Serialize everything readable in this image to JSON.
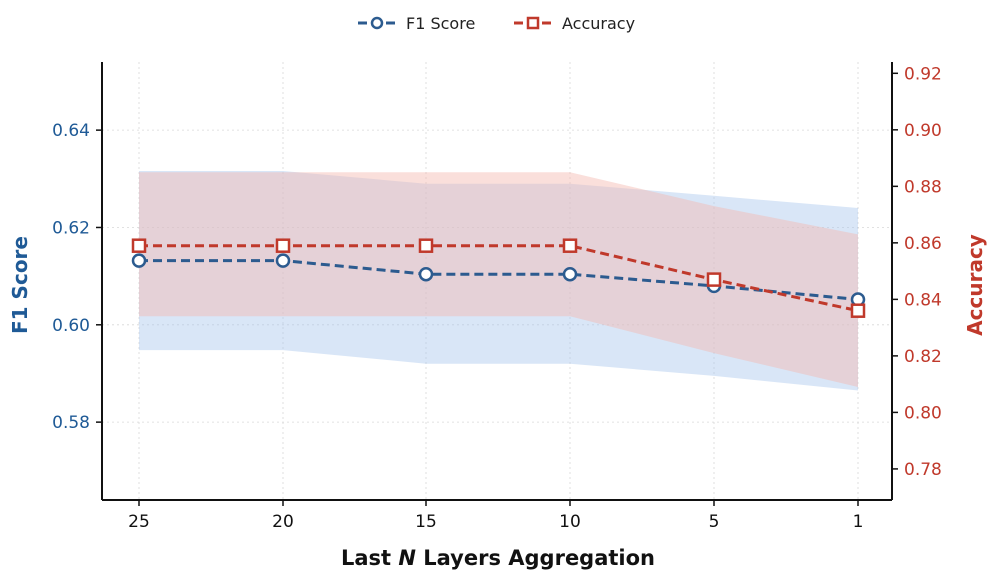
{
  "chart_data": {
    "type": "line",
    "xlabel_prefix": "Last ",
    "xlabel_var": "N",
    "xlabel_suffix": " Layers Aggregation",
    "x": [
      25,
      20,
      15,
      10,
      5,
      1
    ],
    "x_ticks": [
      "25",
      "20",
      "15",
      "10",
      "5",
      "1"
    ],
    "y_left": {
      "label": "F1 Score",
      "ylim": [
        0.564,
        0.654
      ],
      "ticks": [
        0.58,
        0.6,
        0.62,
        0.64
      ],
      "tick_labels": [
        "0.58",
        "0.60",
        "0.62",
        "0.64"
      ],
      "color": "#1f5a96"
    },
    "y_right": {
      "label": "Accuracy",
      "ylim": [
        0.769,
        0.924
      ],
      "ticks": [
        0.78,
        0.8,
        0.82,
        0.84,
        0.86,
        0.88,
        0.9,
        0.92
      ],
      "tick_labels": [
        "0.78",
        "0.80",
        "0.82",
        "0.84",
        "0.86",
        "0.88",
        "0.90",
        "0.92"
      ],
      "color": "#c0392b"
    },
    "series": [
      {
        "name": "F1 Score",
        "axis": "left",
        "color": "#2c5b8f",
        "marker": "circle",
        "values": [
          0.6132,
          0.6132,
          0.6104,
          0.6104,
          0.608,
          0.6052
        ],
        "band_lower": [
          0.5948,
          0.5948,
          0.592,
          0.592,
          0.5895,
          0.5865
        ],
        "band_upper": [
          0.6316,
          0.6316,
          0.629,
          0.629,
          0.6265,
          0.624
        ],
        "band_color": "#aac8ee"
      },
      {
        "name": "Accuracy",
        "axis": "right",
        "color": "#c0392b",
        "marker": "square",
        "values": [
          0.859,
          0.859,
          0.859,
          0.859,
          0.847,
          0.836
        ],
        "band_lower": [
          0.834,
          0.834,
          0.834,
          0.834,
          0.821,
          0.809
        ],
        "band_upper": [
          0.885,
          0.885,
          0.885,
          0.885,
          0.873,
          0.863
        ],
        "band_color": "#f4b8b0"
      }
    ],
    "legend": [
      "F1 Score",
      "Accuracy"
    ],
    "legend_position": "top-center",
    "grid": true
  }
}
